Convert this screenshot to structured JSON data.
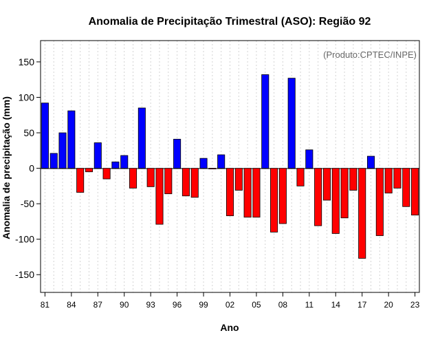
{
  "chart_data": {
    "type": "bar",
    "title": "Anomalia de Precipitação Trimestral (ASO): Região 92",
    "xlabel": "Ano",
    "ylabel": "Anomalia de precipitação (mm)",
    "credit": "(Produto:CPTEC/INPE)",
    "ylim": [
      -175,
      180
    ],
    "yticks": [
      -150,
      -100,
      -50,
      0,
      50,
      100,
      150
    ],
    "x_tick_labels": [
      "81",
      "84",
      "87",
      "90",
      "93",
      "96",
      "99",
      "02",
      "05",
      "08",
      "11",
      "14",
      "17",
      "20",
      "23"
    ],
    "x_tick_every": 3,
    "grid": true,
    "colors": {
      "positive": "#0000ff",
      "negative": "#ff0000",
      "bar_edge": "#000000",
      "grid": "#d3d3d3"
    },
    "categories": [
      "1981",
      "1982",
      "1983",
      "1984",
      "1985",
      "1986",
      "1987",
      "1988",
      "1989",
      "1990",
      "1991",
      "1992",
      "1993",
      "1994",
      "1995",
      "1996",
      "1997",
      "1998",
      "1999",
      "2000",
      "2001",
      "2002",
      "2003",
      "2004",
      "2005",
      "2006",
      "2007",
      "2008",
      "2009",
      "2010",
      "2011",
      "2012",
      "2013",
      "2014",
      "2015",
      "2016",
      "2017",
      "2018",
      "2019",
      "2020",
      "2021",
      "2022",
      "2023"
    ],
    "values": [
      92,
      21,
      50,
      81,
      -34,
      -5,
      36,
      -15,
      9,
      18,
      -28,
      85,
      -26,
      -79,
      -36,
      41,
      -39,
      -41,
      14,
      -1,
      19,
      -67,
      -31,
      -69,
      -69,
      132,
      -90,
      -78,
      127,
      -25,
      26,
      -81,
      -45,
      -92,
      -70,
      -31,
      -127,
      17,
      -95,
      -35,
      -28,
      -54,
      -66
    ]
  }
}
